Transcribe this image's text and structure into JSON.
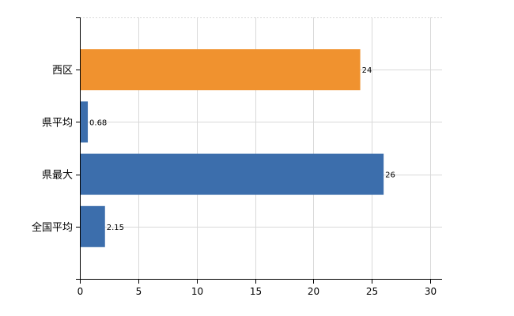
{
  "chart_data": {
    "type": "bar",
    "orientation": "horizontal",
    "categories": [
      "西区",
      "県平均",
      "県最大",
      "全国平均"
    ],
    "values": [
      24,
      0.68,
      26,
      2.15
    ],
    "value_labels": [
      "24",
      "0.68",
      "26",
      "2.15"
    ],
    "bar_colors": [
      "#f0922f",
      "#3c6eac",
      "#3c6eac",
      "#3c6eac"
    ],
    "xlim": [
      0,
      31
    ],
    "x_ticks": [
      0,
      5,
      10,
      15,
      20,
      25,
      30
    ],
    "grid": true,
    "title": "",
    "xlabel": "",
    "ylabel": ""
  }
}
